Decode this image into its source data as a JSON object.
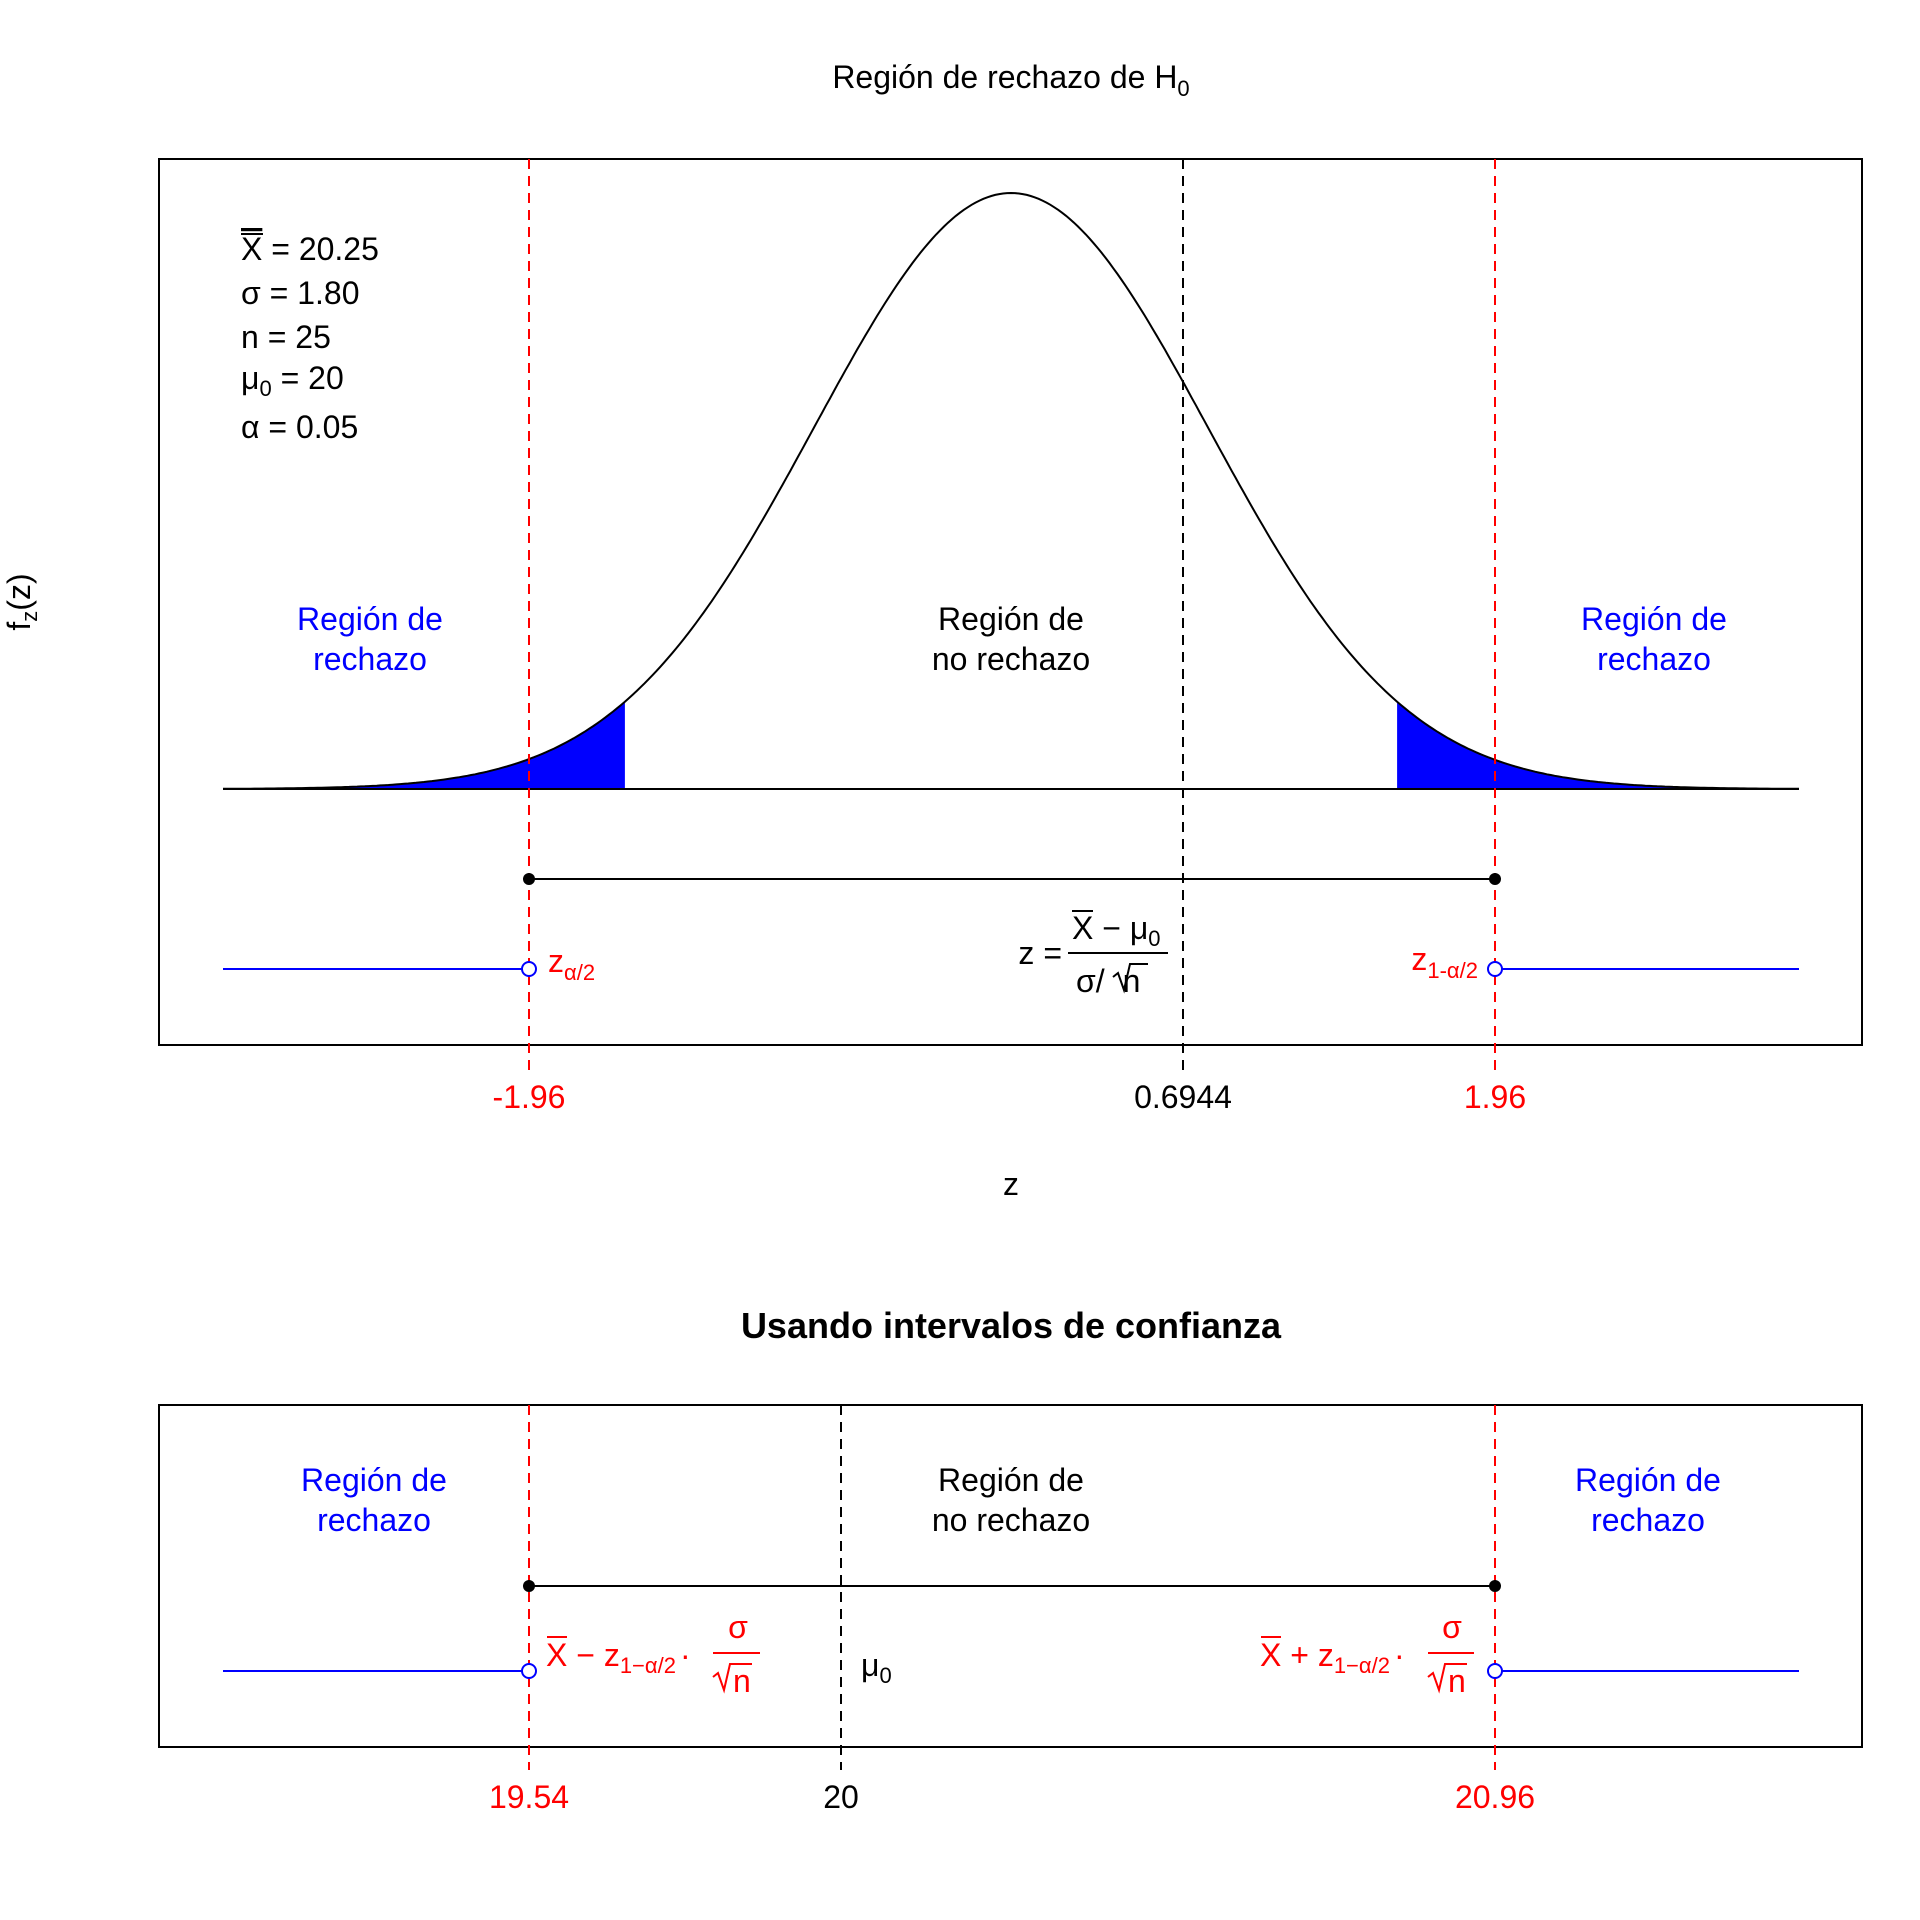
{
  "chart_data": [
    {
      "type": "line",
      "title": "Región de rechazo de H",
      "title_subscript": "0",
      "xlabel": "z",
      "ylabel": "f",
      "ylabel_subscript": "z",
      "ylabel_suffix": "(z)",
      "distribution": "standard normal density",
      "xlim": [
        -4,
        4
      ],
      "critical_values": [
        -1.96,
        1.96
      ],
      "statistic": 0.6944,
      "tick_labels": {
        "lower": "-1.96",
        "stat": "0.6944",
        "upper": "1.96"
      },
      "parameters": [
        {
          "symbol": "X",
          "overline": true,
          "value": "= 20.25"
        },
        {
          "symbol": "σ",
          "value": "= 1.80"
        },
        {
          "symbol": "n",
          "value": "= 25"
        },
        {
          "symbol": "μ",
          "subscript": "0",
          "value": "= 20"
        },
        {
          "symbol": "α",
          "value": "= 0.05"
        }
      ],
      "regions": {
        "reject_line1": "Región de",
        "reject_line2": "rechazo",
        "accept_line1": "Región de",
        "accept_line2": "no rechazo"
      },
      "labels": {
        "z_low": "z",
        "z_low_sub": "α/2",
        "z_high": "z",
        "z_high_sub": "1-α/2",
        "formula_lhs": "z =",
        "formula_num_a": "X",
        "formula_num_b": "− μ",
        "formula_num_sub": "0",
        "formula_den_a": "σ/",
        "formula_den_b": "n"
      },
      "colors": {
        "rejection_fill": "#0000ff",
        "critical_line": "#ff0000",
        "rejection_line": "#0000ff",
        "curve": "#000000"
      },
      "grid": false
    },
    {
      "type": "line",
      "title": "Usando intervalos de confianza",
      "interval": [
        19.54,
        20.96
      ],
      "mu0": 20,
      "tick_labels": {
        "lower": "19.54",
        "mu": "20",
        "upper": "20.96"
      },
      "regions": {
        "reject_line1": "Región de",
        "reject_line2": "rechazo",
        "accept_line1": "Región de",
        "accept_line2": "no rechazo"
      },
      "labels": {
        "mu": "μ",
        "mu_sub": "0",
        "low_a": "X",
        "low_b": "− z",
        "low_sub": "1−α/2",
        "low_dot": "·",
        "low_num": "σ",
        "low_den": "n",
        "high_a": "X",
        "high_b": "+ z",
        "high_sub": "1−α/2",
        "high_dot": "·",
        "high_num": "σ",
        "high_den": "n"
      },
      "colors": {
        "interval_bound": "#ff0000",
        "rejection_line": "#0000ff",
        "mu_line": "#000000"
      },
      "grid": false
    }
  ]
}
